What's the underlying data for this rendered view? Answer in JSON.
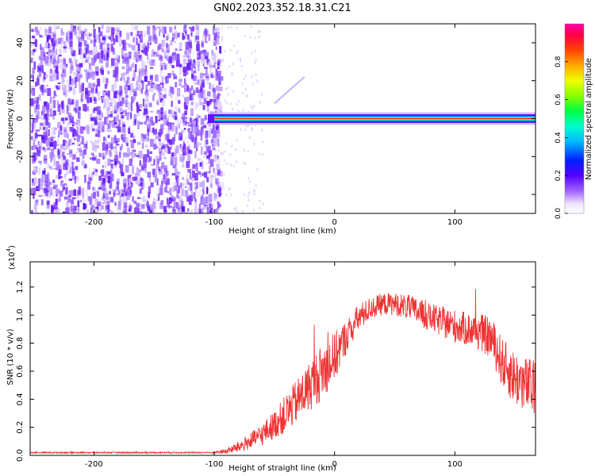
{
  "figure": {
    "title": "GN02.2023.352.18.31.C21"
  },
  "chart_data": [
    {
      "id": "spectrogram",
      "type": "heatmap",
      "title": "GN02.2023.352.18.31.C21",
      "xlabel": "Height of straight line (km)",
      "ylabel": "Frequency (Hz)",
      "xlim": [
        -253,
        167
      ],
      "ylim": [
        -50,
        50
      ],
      "x_ticks": [
        -200,
        -100,
        0,
        100
      ],
      "y_ticks": [
        -40,
        -20,
        0,
        20,
        40
      ],
      "colorbar": {
        "label": "Normalized spectral amplitude",
        "range": [
          0,
          1
        ],
        "ticks": [
          0.0,
          0.2,
          0.4,
          0.6,
          0.8
        ]
      },
      "features": {
        "noise_band_x": [
          -253,
          -100
        ],
        "carrier_line_freq": 0,
        "carrier_start_x": -100
      },
      "grid": false
    },
    {
      "id": "snr",
      "type": "line",
      "xlabel": "Height of straight line (km)",
      "ylabel": "SNR (10 * v/v)",
      "y_multiplier_label": "(x10",
      "y_multiplier_exp": "4",
      "xlim": [
        -253,
        167
      ],
      "ylim": [
        0,
        1.38
      ],
      "x_ticks": [
        -200,
        -100,
        0,
        100
      ],
      "y_ticks": [
        0.0,
        0.2,
        0.4,
        0.6,
        0.8,
        1.0,
        1.2
      ],
      "color": "#ee3333",
      "grid": false,
      "envelope": {
        "x": [
          -253,
          -100,
          -90,
          -80,
          -70,
          -60,
          -50,
          -40,
          -30,
          -20,
          -10,
          0,
          10,
          20,
          30,
          40,
          50,
          60,
          70,
          80,
          90,
          100,
          110,
          120,
          130,
          140,
          150,
          160,
          167
        ],
        "mean": [
          0.02,
          0.02,
          0.03,
          0.06,
          0.1,
          0.15,
          0.22,
          0.3,
          0.4,
          0.5,
          0.6,
          0.7,
          0.85,
          0.98,
          1.05,
          1.08,
          1.08,
          1.06,
          1.02,
          0.98,
          0.95,
          0.92,
          0.9,
          0.88,
          0.84,
          0.65,
          0.55,
          0.5,
          0.48
        ],
        "amp": [
          0.005,
          0.005,
          0.02,
          0.04,
          0.06,
          0.08,
          0.1,
          0.14,
          0.16,
          0.18,
          0.2,
          0.18,
          0.12,
          0.1,
          0.08,
          0.08,
          0.08,
          0.09,
          0.1,
          0.1,
          0.11,
          0.12,
          0.12,
          0.13,
          0.15,
          0.18,
          0.2,
          0.2,
          0.2
        ]
      }
    }
  ]
}
